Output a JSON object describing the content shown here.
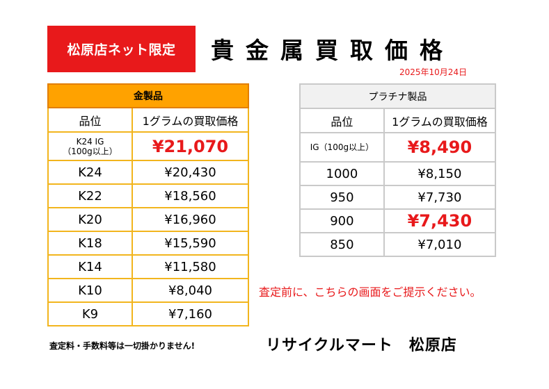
{
  "badge": "松原店ネット限定",
  "title": "貴金属買取価格",
  "date": "2025年10月24日",
  "gold": {
    "header": "金製品",
    "col_grade": "品位",
    "col_price": "1グラムの買取価格",
    "rows": [
      {
        "grade": "K24 IG\n（100g以上）",
        "price": "¥21,070"
      },
      {
        "grade": "K24",
        "price": "¥20,430"
      },
      {
        "grade": "K22",
        "price": "¥18,560"
      },
      {
        "grade": "K20",
        "price": "¥16,960"
      },
      {
        "grade": "K18",
        "price": "¥15,590"
      },
      {
        "grade": "K14",
        "price": "¥11,580"
      },
      {
        "grade": "K10",
        "price": "¥8,040"
      },
      {
        "grade": "K9",
        "price": "¥7,160"
      }
    ]
  },
  "platinum": {
    "header": "プラチナ製品",
    "col_grade": "品位",
    "col_price": "1グラムの買取価格",
    "rows": [
      {
        "grade": "IG（100g以上）",
        "price": "¥8,490"
      },
      {
        "grade": "1000",
        "price": "¥8,150"
      },
      {
        "grade": "950",
        "price": "¥7,730"
      },
      {
        "grade": "900",
        "price": "¥7,430"
      },
      {
        "grade": "850",
        "price": "¥7,010"
      }
    ]
  },
  "notice": "査定前に、こちらの画面をご提示ください。",
  "footer_note": "査定料・手数料等は一切掛かりません!",
  "store_name": "リサイクルマート　松原店",
  "colors": {
    "accent_red": "#e8191b",
    "gold_header": "#ffa200",
    "gold_border": "#f2b51d",
    "plat_border": "#c9c9c9"
  }
}
